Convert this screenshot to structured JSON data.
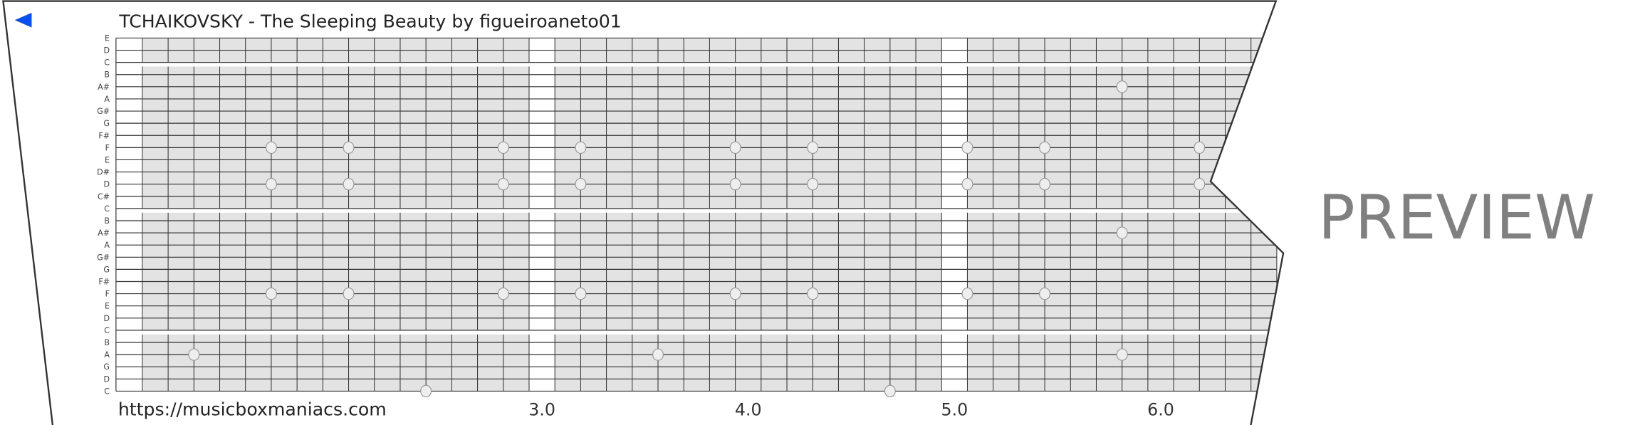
{
  "header": {
    "back_icon": "triangle-left-icon",
    "back_color": "#0a4ff0",
    "title": "TCHAIKOVSKY - The Sleeping Beauty by figueiroaneto01"
  },
  "grid": {
    "pitch_labels": [
      "E",
      "D",
      "C",
      "B",
      "A#",
      "A",
      "G#",
      "G",
      "F#",
      "F",
      "E",
      "D#",
      "D",
      "C#",
      "C",
      "B",
      "A#",
      "A",
      "G#",
      "G",
      "F#",
      "F",
      "E",
      "D",
      "C",
      "B",
      "A",
      "G",
      "D",
      "C"
    ],
    "section_break_after_rows": [
      2,
      14,
      24
    ],
    "white_columns": [
      15,
      31
    ],
    "columns_per_beat": 8,
    "fill_color": "#e3e3e3",
    "line_color": "#333333",
    "notes": [
      {
        "row": 4,
        "col": 38
      },
      {
        "row": 9,
        "col": 5
      },
      {
        "row": 9,
        "col": 8
      },
      {
        "row": 9,
        "col": 14
      },
      {
        "row": 9,
        "col": 17
      },
      {
        "row": 9,
        "col": 23
      },
      {
        "row": 9,
        "col": 26
      },
      {
        "row": 9,
        "col": 32
      },
      {
        "row": 9,
        "col": 35
      },
      {
        "row": 9,
        "col": 41
      },
      {
        "row": 12,
        "col": 5
      },
      {
        "row": 12,
        "col": 8
      },
      {
        "row": 12,
        "col": 14
      },
      {
        "row": 12,
        "col": 17
      },
      {
        "row": 12,
        "col": 23
      },
      {
        "row": 12,
        "col": 26
      },
      {
        "row": 12,
        "col": 32
      },
      {
        "row": 12,
        "col": 35
      },
      {
        "row": 12,
        "col": 41
      },
      {
        "row": 16,
        "col": 38
      },
      {
        "row": 21,
        "col": 5
      },
      {
        "row": 21,
        "col": 8
      },
      {
        "row": 21,
        "col": 14
      },
      {
        "row": 21,
        "col": 17
      },
      {
        "row": 21,
        "col": 23
      },
      {
        "row": 21,
        "col": 26
      },
      {
        "row": 21,
        "col": 32
      },
      {
        "row": 21,
        "col": 35
      },
      {
        "row": 26,
        "col": 2
      },
      {
        "row": 26,
        "col": 20
      },
      {
        "row": 26,
        "col": 38
      },
      {
        "row": 29,
        "col": 11
      },
      {
        "row": 29,
        "col": 29
      }
    ]
  },
  "footer": {
    "url": "https://musicboxmaniacs.com",
    "beats": [
      {
        "label": "3.0",
        "col": 15.5
      },
      {
        "label": "4.0",
        "col": 23.5
      },
      {
        "label": "5.0",
        "col": 31.5
      },
      {
        "label": "6.0",
        "col": 39.5
      }
    ]
  },
  "watermark": "PREVIEW"
}
